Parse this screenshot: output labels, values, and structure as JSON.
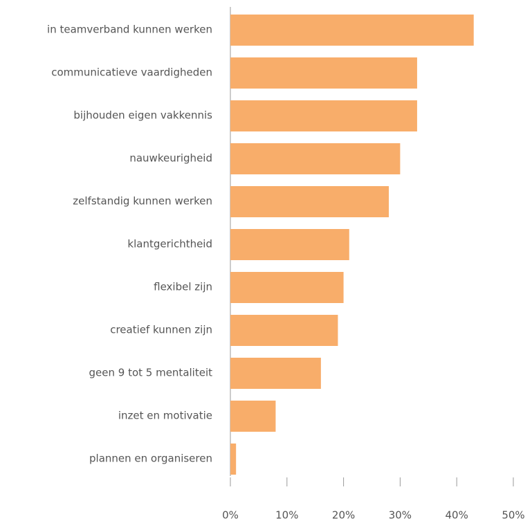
{
  "chart_data": {
    "type": "hbar",
    "categories": [
      "in teamverband kunnen werken",
      "communicatieve vaardigheden",
      "bijhouden eigen vakkennis",
      "nauwkeurigheid",
      "zelfstandig kunnen werken",
      "klantgerichtheid",
      "flexibel zijn",
      "creatief kunnen zijn",
      "geen 9 tot 5 mentaliteit",
      "inzet en motivatie",
      "plannen en organiseren"
    ],
    "values": [
      43,
      33,
      33,
      30,
      28,
      21,
      20,
      19,
      16,
      8,
      1
    ],
    "color": "#f8ad6a",
    "xlim": [
      0,
      50
    ],
    "xticks": [
      {
        "value": 0,
        "label": "0%"
      },
      {
        "value": 10,
        "label": "10%"
      },
      {
        "value": 20,
        "label": "20%"
      },
      {
        "value": 30,
        "label": "30%"
      },
      {
        "value": 40,
        "label": "40%"
      },
      {
        "value": 50,
        "label": "50%"
      }
    ]
  }
}
